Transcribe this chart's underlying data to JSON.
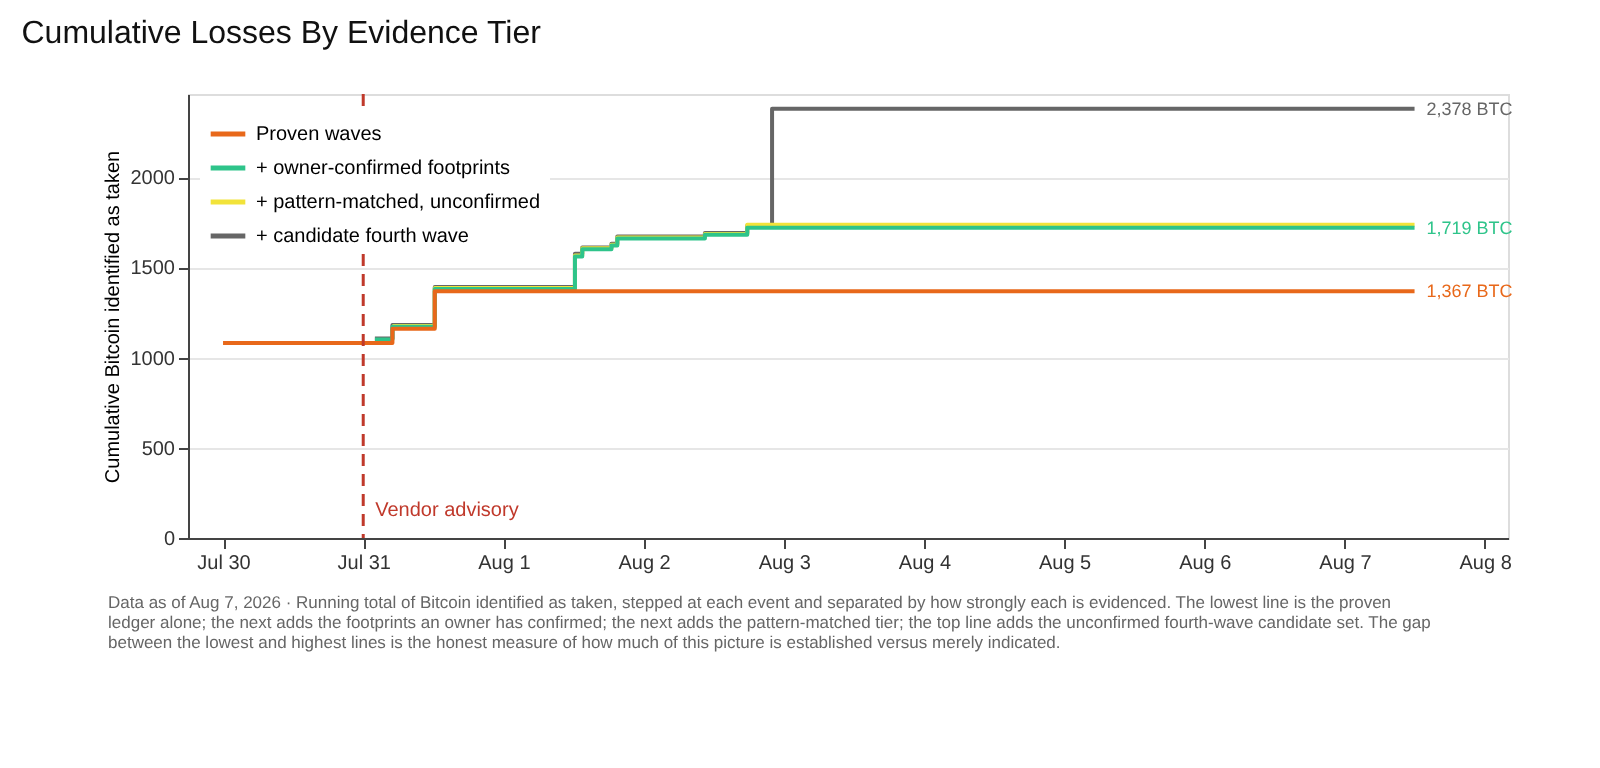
{
  "chart_data": {
    "type": "step",
    "title": "Cumulative Losses By Evidence Tier",
    "ylabel": "Cumulative Bitcoin identified as taken",
    "xlim": [
      "2026-07-29T18:00",
      "2026-08-08T04:00"
    ],
    "xticks": [
      {
        "value": "2026-07-30",
        "label": "Jul 30"
      },
      {
        "value": "2026-07-31",
        "label": "Jul 31"
      },
      {
        "value": "2026-08-01",
        "label": "Aug 1"
      },
      {
        "value": "2026-08-02",
        "label": "Aug 2"
      },
      {
        "value": "2026-08-03",
        "label": "Aug 3"
      },
      {
        "value": "2026-08-04",
        "label": "Aug 4"
      },
      {
        "value": "2026-08-05",
        "label": "Aug 5"
      },
      {
        "value": "2026-08-06",
        "label": "Aug 6"
      },
      {
        "value": "2026-08-07",
        "label": "Aug 7"
      },
      {
        "value": "2026-08-08",
        "label": "Aug 8"
      }
    ],
    "ylim": [
      0,
      2460
    ],
    "yticks": [
      0,
      500,
      1000,
      1500,
      2000
    ],
    "grid": "y",
    "legend": "top left",
    "marker": "none",
    "line_style": "solid",
    "series": [
      {
        "name": "Proven waves",
        "color": "#e8681a",
        "x": [
          "2026-07-30T00:00",
          "2026-07-31T05:00",
          "2026-07-31T12:15",
          "2026-08-07T12:00"
        ],
        "values": [
          1080,
          1160,
          1367,
          1367
        ]
      },
      {
        "name": "+ owner-confirmed footprints",
        "color": "#2ec48a",
        "x": [
          "2026-07-31T02:00",
          "2026-07-31T05:00",
          "2026-07-31T12:15",
          "2026-08-01T12:15",
          "2026-08-01T13:30",
          "2026-08-01T18:30",
          "2026-08-01T19:30",
          "2026-08-02T10:30",
          "2026-08-02T17:45",
          "2026-08-07T12:00"
        ],
        "values": [
          1100,
          1170,
          1380,
          1560,
          1600,
          1620,
          1660,
          1680,
          1719,
          1719
        ]
      },
      {
        "name": "+ pattern-matched, unconfirmed",
        "color": "#f2e33a",
        "x": [
          "2026-07-31T05:00",
          "2026-07-31T12:15",
          "2026-08-01T12:15",
          "2026-08-01T13:30",
          "2026-08-01T18:30",
          "2026-08-01T19:30",
          "2026-08-02T10:30",
          "2026-08-02T17:45",
          "2026-08-07T12:00"
        ],
        "values": [
          1175,
          1385,
          1565,
          1605,
          1625,
          1665,
          1685,
          1735,
          1735
        ]
      },
      {
        "name": "+ candidate fourth wave",
        "color": "#666666",
        "x": [
          "2026-07-31T02:00",
          "2026-07-31T05:00",
          "2026-07-31T12:15",
          "2026-08-01T12:15",
          "2026-08-01T13:30",
          "2026-08-01T18:30",
          "2026-08-01T19:30",
          "2026-08-02T10:30",
          "2026-08-02T17:45",
          "2026-08-02T22:00",
          "2026-08-07T12:00"
        ],
        "values": [
          1105,
          1180,
          1390,
          1575,
          1610,
          1630,
          1670,
          1690,
          1730,
          2378,
          2378
        ]
      }
    ],
    "ref_lines": [
      {
        "axis": "x",
        "value": "2026-07-31T00:00",
        "label": "Vendor advisory",
        "color": "#c0392b",
        "line_style": "dashed"
      }
    ],
    "annotations": [
      {
        "text": "2,378 BTC",
        "x": "2026-08-07T12:00",
        "y": 2378
      },
      {
        "text": "1,719 BTC",
        "x": "2026-08-07T12:00",
        "y": 1719
      },
      {
        "text": "1,367 BTC",
        "x": "2026-08-07T12:00",
        "y": 1367
      },
      "Data as of Aug 7, 2026 · Running total of Bitcoin identified as taken, stepped at each event and separated by how strongly each is evidenced. The lowest line is the proven ledger alone; the next adds the footprints an owner has confirmed; the next adds the pattern-matched tier; the top line adds the unconfirmed fourth-wave candidate set. The gap between the lowest and highest lines is the honest measure of how much of this picture is established versus merely indicated."
    ]
  }
}
